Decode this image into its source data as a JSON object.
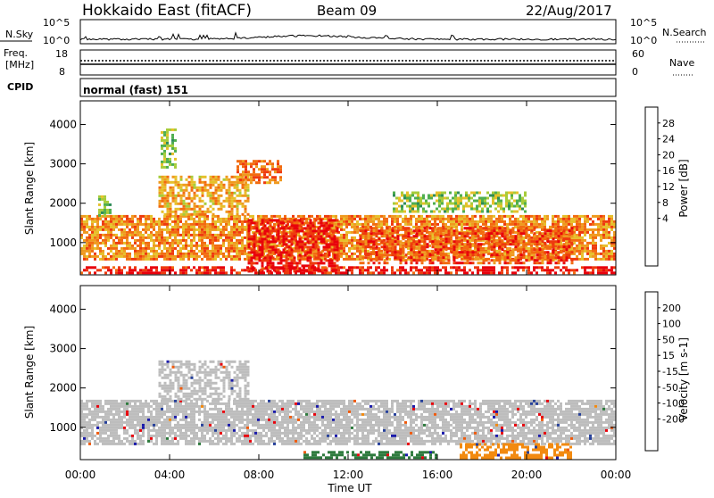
{
  "header": {
    "title": "Hokkaido East (fitACF)",
    "beam": "Beam 09",
    "date": "22/Aug/2017"
  },
  "top_panels": {
    "nsky_label": "N.Sky",
    "nsearch_label": "N.Search",
    "noise_ticks": [
      "10^5",
      "10^0"
    ],
    "freq_label": "Freq.",
    "freq_unit": "[MHz]",
    "freq_ticks": [
      "18",
      "8"
    ],
    "nave_label": "Nave",
    "nave_ticks": [
      "60",
      "0"
    ],
    "cpid_label": "CPID",
    "cpid_value": "normal (fast) 151"
  },
  "colors": {
    "power_scale": [
      "#0000ee",
      "#3a4fb0",
      "#2e8b57",
      "#4fae4f",
      "#a7cc3a",
      "#e6c02a",
      "#ef9a1f",
      "#f26b10",
      "#ee3a0e",
      "#e8000b"
    ],
    "velocity_scale": [
      "#1a1aaa",
      "#26409a",
      "#2d7a3d",
      "#69c243",
      "#bdbdbd",
      "#bdbdbd",
      "#f0b020",
      "#f28a10",
      "#ef5a0c",
      "#e8000b"
    ]
  },
  "chart_data": [
    {
      "type": "heatmap",
      "name": "power",
      "ylabel": "Slant Range [km]",
      "ylim": [
        180,
        4600
      ],
      "yticks": [
        1000,
        2000,
        3000,
        4000
      ],
      "xlim": [
        0,
        24
      ],
      "colorbar": {
        "label": "Power [dB]",
        "range": [
          0,
          32
        ],
        "ticks": [
          4,
          8,
          12,
          16,
          20,
          24,
          28
        ]
      },
      "features": [
        {
          "x": [
            0,
            24
          ],
          "y": [
            600,
            1700
          ],
          "value": 22,
          "desc": "main band"
        },
        {
          "x": [
            7.5,
            11.5
          ],
          "y": [
            300,
            1600
          ],
          "value": 30
        },
        {
          "x": [
            12.5,
            22
          ],
          "y": [
            500,
            1400
          ],
          "value": 26
        },
        {
          "x": [
            0,
            24
          ],
          "y": [
            200,
            400
          ],
          "value": 30
        },
        {
          "x": [
            3.5,
            7.5
          ],
          "y": [
            1700,
            2700
          ],
          "value": 20
        },
        {
          "x": [
            7,
            9
          ],
          "y": [
            2500,
            3100
          ],
          "value": 24
        },
        {
          "x": [
            3.6,
            4.3
          ],
          "y": [
            2900,
            3900
          ],
          "value": 14
        },
        {
          "x": [
            0.8,
            1.4
          ],
          "y": [
            1700,
            2200
          ],
          "value": 14
        },
        {
          "x": [
            14,
            20
          ],
          "y": [
            1800,
            2300
          ],
          "value": 14
        }
      ]
    },
    {
      "type": "heatmap",
      "name": "velocity",
      "ylabel": "Slant Range [km]",
      "xlabel": "Time UT",
      "ylim": [
        180,
        4600
      ],
      "yticks": [
        1000,
        2000,
        3000,
        4000
      ],
      "xlim": [
        0,
        24
      ],
      "xticks": [
        "00:00",
        "04:00",
        "08:00",
        "12:00",
        "16:00",
        "20:00",
        "00:00"
      ],
      "colorbar": {
        "label": "Velocity [m s-1]",
        "ticks": [
          200,
          100,
          50,
          15,
          -15,
          -50,
          -100,
          -200
        ]
      },
      "features": [
        {
          "x": [
            0,
            24
          ],
          "y": [
            600,
            1700
          ],
          "value": 0
        },
        {
          "x": [
            10,
            16
          ],
          "y": [
            200,
            400
          ],
          "value": 50
        },
        {
          "x": [
            17,
            22
          ],
          "y": [
            200,
            600
          ],
          "value": -60
        },
        {
          "x": [
            3.5,
            7.5
          ],
          "y": [
            1700,
            2700
          ],
          "value": 0
        }
      ]
    }
  ]
}
